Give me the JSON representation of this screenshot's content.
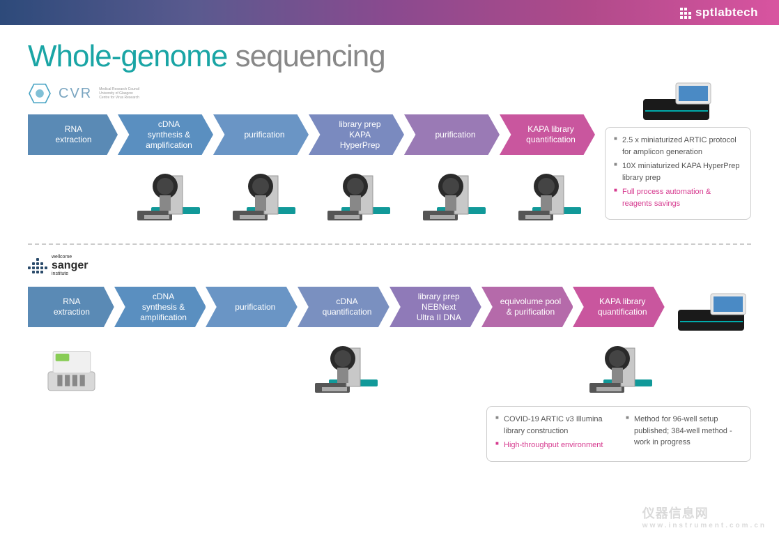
{
  "brand": "sptlabtech",
  "title_part1": "Whole-genome",
  "title_part2": " sequencing",
  "cvr": {
    "name": "CVR",
    "sub": "Medical Research Council\nUniversity of Glasgow\nCentre for Virus Research"
  },
  "sanger": {
    "top": "wellcome",
    "main": "sanger",
    "bottom": "institute"
  },
  "flow1": {
    "steps": [
      "RNA\nextraction",
      "cDNA\nsynthesis &\namplification",
      "purification",
      "library prep\nKAPA\nHyperPrep",
      "purification",
      "KAPA library\nquantification"
    ],
    "colors": [
      "#5a8ab5",
      "#5a8fc0",
      "#6a95c5",
      "#7a8abf",
      "#9a7ab5",
      "#c9569e"
    ]
  },
  "flow2": {
    "steps": [
      "RNA\nextraction",
      "cDNA\nsynthesis &\namplification",
      "purification",
      "cDNA\nquantification",
      "library prep\nNEBNext\nUltra II DNA",
      "equivolume pool\n& purification",
      "KAPA library\nquantification"
    ],
    "colors": [
      "#5a8ab5",
      "#5a8fc0",
      "#6a95c5",
      "#7a90c0",
      "#8f7ab8",
      "#b56aaa",
      "#c9569e"
    ]
  },
  "bullets1": [
    {
      "text": "2.5 x miniaturized ARTIC protocol for amplicon generation",
      "cls": "grey"
    },
    {
      "text": "10X miniaturized KAPA HyperPrep library prep",
      "cls": "grey"
    },
    {
      "text": "Full process automation & reagents savings",
      "cls": "pink"
    }
  ],
  "bullets2a": [
    {
      "text": "COVID-19 ARTIC v3 Illumina library construction",
      "cls": "grey"
    },
    {
      "text": "High-throughput environment",
      "cls": "pink"
    }
  ],
  "bullets2b": [
    {
      "text": "Method for 96-well setup published; 384-well method - work in progress",
      "cls": "grey"
    }
  ],
  "watermark": {
    "main": "仪器信息网",
    "sub": "www.instrument.com.cn"
  }
}
